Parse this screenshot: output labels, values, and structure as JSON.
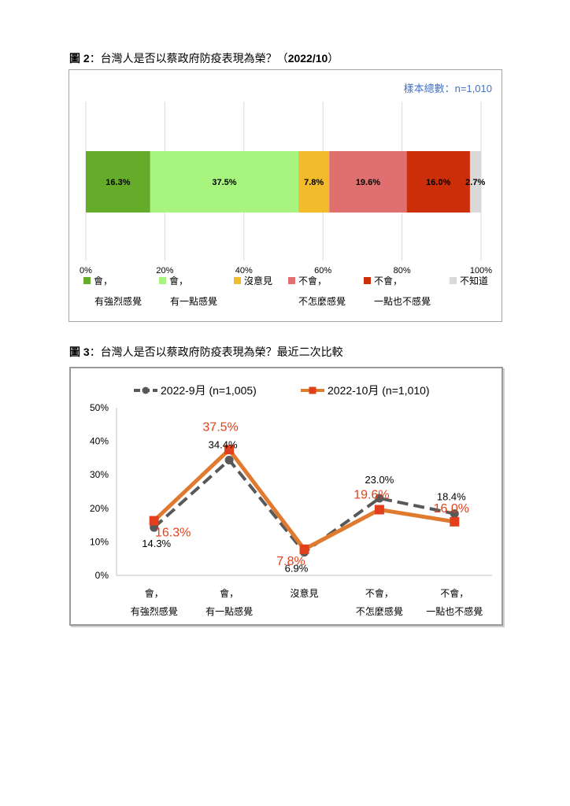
{
  "figure2": {
    "caption_label": "圖 2",
    "caption_text": "：台灣人是否以蔡政府防疫表現為榮？（",
    "caption_date": "2022/10",
    "caption_end": "）",
    "sample_note": "樣本總數：n=1,010",
    "colors": [
      "#65ac2b",
      "#a7f57f",
      "#f2bb2b",
      "#e06f6f",
      "#cc2e0a",
      "#d9d9d9"
    ],
    "chart_data": {
      "type": "bar",
      "orientation": "horizontal-stacked",
      "categories": [
        "會，有強烈感覺",
        "會，有一點感覺",
        "沒意見",
        "不會，不怎麼感覺",
        "不會，一點也不感覺",
        "不知道"
      ],
      "values": [
        16.3,
        37.5,
        7.8,
        19.6,
        16.0,
        2.7
      ],
      "value_labels": [
        "16.3%",
        "37.5%",
        "7.8%",
        "19.6%",
        "16.0%",
        "2.7%"
      ],
      "xlim": [
        0,
        100
      ],
      "x_ticks": [
        "0%",
        "20%",
        "40%",
        "60%",
        "80%",
        "100%"
      ],
      "grid": true,
      "legend": [
        {
          "line1": "會，",
          "line2": "有強烈感覺"
        },
        {
          "line1": "會，",
          "line2": "有一點感覺"
        },
        {
          "line1": "沒意見",
          "line2": ""
        },
        {
          "line1": "不會，",
          "line2": "不怎麼感覺"
        },
        {
          "line1": "不會，",
          "line2": "一點也不感覺"
        },
        {
          "line1": "不知道",
          "line2": ""
        }
      ],
      "legend_position": "bottom"
    }
  },
  "figure3": {
    "caption_label": "圖 3",
    "caption_text": "：台灣人是否以蔡政府防疫表現為榮？最近二次比較",
    "chart_data": {
      "type": "line",
      "categories": [
        {
          "line1": "會，",
          "line2": "有強烈感覺"
        },
        {
          "line1": "會，",
          "line2": "有一點感覺"
        },
        {
          "line1": "沒意見",
          "line2": ""
        },
        {
          "line1": "不會，",
          "line2": "不怎麼感覺"
        },
        {
          "line1": "不會，",
          "line2": "一點也不感覺"
        }
      ],
      "ylim": [
        0,
        50
      ],
      "y_ticks": [
        "0%",
        "10%",
        "20%",
        "30%",
        "40%",
        "50%"
      ],
      "grid": false,
      "legend_position": "top",
      "series": [
        {
          "name": "2022-9月 (n=1,005)",
          "values": [
            14.3,
            34.4,
            6.9,
            23.0,
            18.4
          ],
          "labels": [
            "14.3%",
            "34.4%",
            "6.9%",
            "23.0%",
            "18.4%"
          ],
          "color": "#595959",
          "style": "dashed",
          "marker": "circle"
        },
        {
          "name": "2022-10月 (n=1,010)",
          "values": [
            16.3,
            37.5,
            7.8,
            19.6,
            16.0
          ],
          "labels": [
            "16.3%",
            "37.5%",
            "7.8%",
            "19.6%",
            "16.0%"
          ],
          "color": "#e07a2e",
          "label_color": "#e2401c",
          "style": "solid",
          "marker": "square"
        }
      ]
    }
  }
}
